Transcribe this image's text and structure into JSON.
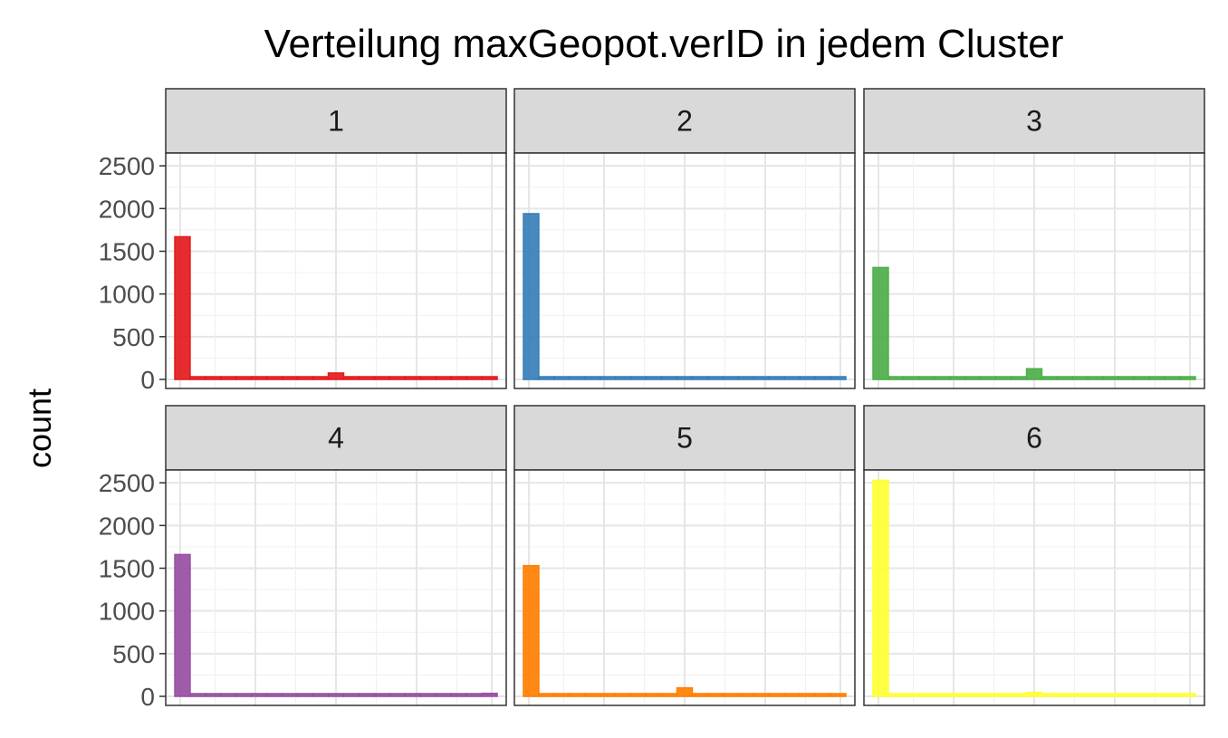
{
  "chart_data": {
    "type": "bar",
    "title": "Verteilung maxGeopot.verID in jedem Cluster",
    "xlabel": "",
    "ylabel": "count",
    "ylim": [
      0,
      2650
    ],
    "yticks": [
      0,
      500,
      1000,
      1500,
      2000,
      2500
    ],
    "facet_layout": "2 rows x 3 columns",
    "grid": true,
    "legend": "none",
    "bins": [
      0,
      1,
      2,
      3,
      4,
      5,
      6,
      7,
      8,
      9,
      10,
      11,
      12,
      13,
      14,
      15,
      16,
      17,
      18,
      19,
      20
    ],
    "panels": [
      {
        "label": "1",
        "color": "#E41A1C",
        "values": [
          1670,
          0,
          0,
          0,
          0,
          0,
          0,
          0,
          0,
          0,
          75,
          0,
          0,
          0,
          0,
          0,
          0,
          0,
          0,
          0,
          25
        ]
      },
      {
        "label": "2",
        "color": "#377EB8",
        "values": [
          1940,
          0,
          0,
          0,
          0,
          0,
          0,
          0,
          0,
          0,
          30,
          0,
          0,
          0,
          0,
          0,
          0,
          0,
          0,
          0,
          5
        ]
      },
      {
        "label": "3",
        "color": "#4DAF4A",
        "values": [
          1310,
          0,
          0,
          0,
          0,
          0,
          0,
          0,
          0,
          0,
          125,
          0,
          0,
          0,
          0,
          0,
          0,
          0,
          0,
          0,
          20
        ]
      },
      {
        "label": "4",
        "color": "#984EA3",
        "values": [
          1660,
          0,
          0,
          0,
          0,
          0,
          0,
          0,
          0,
          0,
          5,
          0,
          0,
          0,
          0,
          0,
          0,
          0,
          0,
          0,
          35
        ]
      },
      {
        "label": "5",
        "color": "#FF7F00",
        "values": [
          1530,
          0,
          0,
          0,
          0,
          0,
          0,
          0,
          0,
          0,
          100,
          0,
          0,
          0,
          0,
          0,
          0,
          0,
          0,
          0,
          5
        ]
      },
      {
        "label": "6",
        "color": "#FFFF33",
        "values": [
          2530,
          0,
          0,
          0,
          0,
          0,
          0,
          0,
          0,
          0,
          45,
          0,
          0,
          0,
          0,
          0,
          0,
          0,
          0,
          0,
          5
        ]
      }
    ]
  }
}
